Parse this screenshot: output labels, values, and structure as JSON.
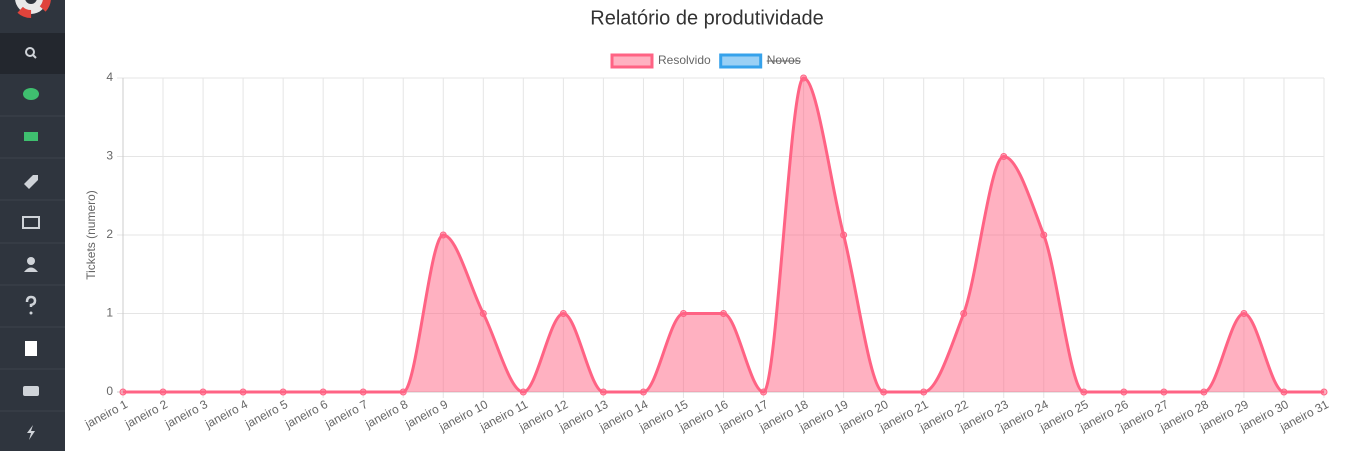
{
  "chart_data": {
    "type": "line",
    "title": "Relatório de produtividade",
    "y_label": "Tickets (numero)",
    "categories": [
      "janeiro 1",
      "janeiro 2",
      "janeiro 3",
      "janeiro 4",
      "janeiro 5",
      "janeiro 6",
      "janeiro 7",
      "janeiro 8",
      "janeiro 9",
      "janeiro 10",
      "janeiro 11",
      "janeiro 12",
      "janeiro 13",
      "janeiro 14",
      "janeiro 15",
      "janeiro 16",
      "janeiro 17",
      "janeiro 18",
      "janeiro 19",
      "janeiro 20",
      "janeiro 21",
      "janeiro 22",
      "janeiro 23",
      "janeiro 24",
      "janeiro 25",
      "janeiro 26",
      "janeiro 27",
      "janeiro 28",
      "janeiro 29",
      "janeiro 30",
      "janeiro 31"
    ],
    "series": [
      {
        "name": "Resolvido",
        "color": "#ff6384",
        "fill": "rgba(255,99,132,0.5)",
        "hidden": false,
        "values": [
          0,
          0,
          0,
          0,
          0,
          0,
          0,
          0,
          2,
          1,
          0,
          1,
          0,
          0,
          1,
          1,
          0,
          4,
          2,
          0,
          0,
          1,
          3,
          2,
          0,
          0,
          0,
          0,
          1,
          0,
          0
        ]
      },
      {
        "name": "Novos",
        "color": "#36a2eb",
        "fill": "rgba(54,162,235,0.5)",
        "hidden": true,
        "values": [
          null,
          null,
          null,
          null,
          null,
          null,
          null,
          null,
          null,
          null,
          null,
          null,
          null,
          null,
          null,
          null,
          null,
          null,
          null,
          null,
          null,
          null,
          null,
          null,
          null,
          null,
          null,
          null,
          null,
          null,
          null
        ]
      }
    ],
    "ylim": [
      0,
      4
    ],
    "yticks": [
      0,
      1,
      2,
      3,
      4
    ],
    "grid": true,
    "legend": "top"
  }
}
